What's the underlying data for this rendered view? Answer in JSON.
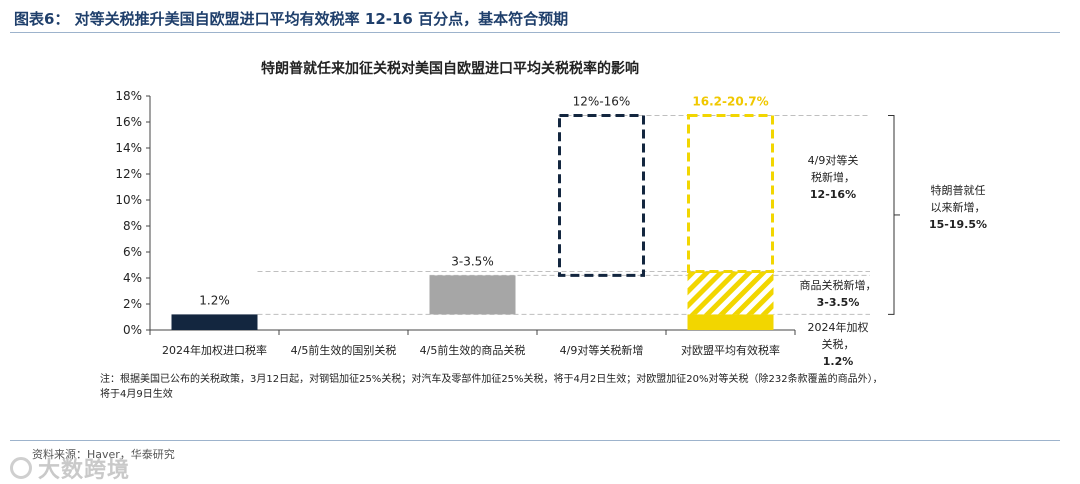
{
  "figure_title": "图表6：  对等关税推升美国自欧盟进口平均有效税率 12-16 百分点，基本符合预期",
  "chart_title": "特朗普就任来加征关税对美国自欧盟进口平均关税税率的影响",
  "note_line1": "注：根据美国已公布的关税政策，3月12日起，对钢铝加征25%关税；对汽车及零部件加征25%关税，将于4月2日生效；对欧盟加征20%对等关税（除232条款覆盖的商品外），",
  "note_line2": "将于4月9日生效",
  "source": "资料来源：Haver，华泰研究",
  "watermark": "大数跨境",
  "colors": {
    "navy": "#13263f",
    "gray": "#a6a6a6",
    "yellow": "#f2d600",
    "yellow_text": "#f0c800",
    "axis": "#444444",
    "dash": "#bfbfbf"
  },
  "chart_data": {
    "type": "bar",
    "subtype": "waterfall",
    "categories": [
      "2024年加权进口税率",
      "4/5前生效的国别关税",
      "4/5前生效的商品关税",
      "4/9对等关税新增",
      "对欧盟平均有效税率"
    ],
    "ylim": [
      0,
      18
    ],
    "yticks": [
      "0%",
      "2%",
      "4%",
      "6%",
      "8%",
      "10%",
      "12%",
      "14%",
      "16%",
      "18%"
    ],
    "bars": [
      {
        "category": "2024年加权进口税率",
        "low": 0,
        "high": 1.2,
        "style": "solid-navy",
        "label": "1.2%"
      },
      {
        "category": "4/5前生效的国别关税",
        "low": 1.2,
        "high": 1.2,
        "style": "none",
        "label": ""
      },
      {
        "category": "4/5前生效的商品关税",
        "low": 1.2,
        "high": 4.2,
        "style": "solid-gray",
        "label": "3-3.5%"
      },
      {
        "category": "4/9对等关税新增",
        "low": 4.2,
        "high": 16.5,
        "style": "dashed-navy",
        "label": "12%-16%"
      },
      {
        "category": "对欧盟平均有效税率",
        "low": 0,
        "high": 16.5,
        "style": "stacked-yellow",
        "label": "16.2-20.7%",
        "segments": [
          {
            "low": 0,
            "high": 1.2,
            "style": "solid-yellow"
          },
          {
            "low": 1.2,
            "high": 4.5,
            "style": "hatched-yellow"
          },
          {
            "low": 4.5,
            "high": 16.5,
            "style": "dashed-yellow"
          }
        ]
      }
    ],
    "guides": [
      16.5,
      4.5,
      4.2,
      1.2
    ],
    "right_annotations": {
      "new_reciprocal": [
        "4/9对等关",
        "税新增，",
        "12-16%"
      ],
      "goods_new": [
        "商品关税新增，",
        "3-3.5%"
      ],
      "base_2024": [
        "2024年加权",
        "关税，",
        "1.2%"
      ],
      "total_new": [
        "特朗普就任",
        "以来新增，",
        "15-19.5%"
      ]
    },
    "grid": false
  }
}
